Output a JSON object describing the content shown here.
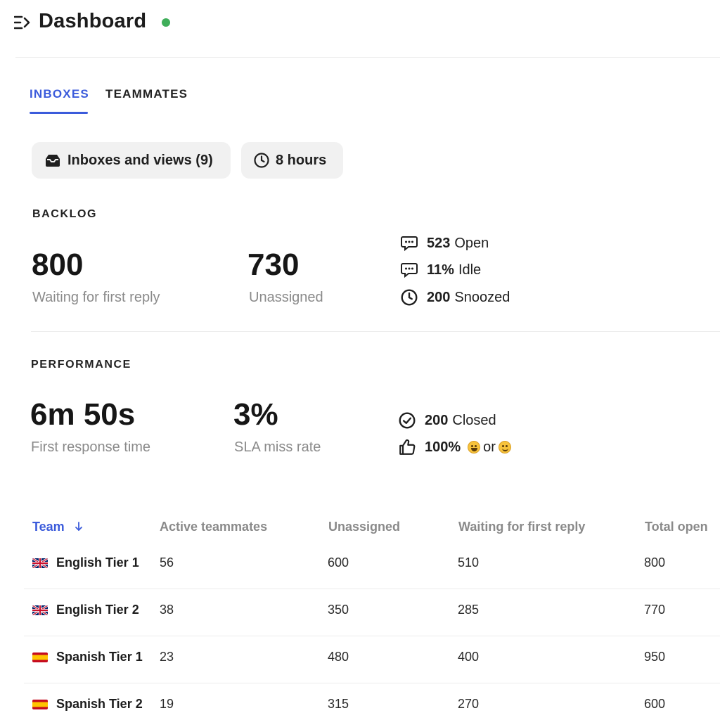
{
  "header": {
    "title": "Dashboard",
    "status_color": "#3fae5a"
  },
  "tabs": [
    {
      "label": "INBOXES",
      "active": true
    },
    {
      "label": "TEAMMATES",
      "active": false
    }
  ],
  "filters": {
    "inboxes_label": "Inboxes and views (9)",
    "hours_label": "8 hours"
  },
  "backlog": {
    "label": "BACKLOG",
    "waiting": {
      "value": "800",
      "caption": "Waiting for first reply"
    },
    "unassigned": {
      "value": "730",
      "caption": "Unassigned"
    },
    "stats": [
      {
        "icon": "chat-icon",
        "value": "523",
        "label": "Open"
      },
      {
        "icon": "chat-icon",
        "value": "11%",
        "label": "Idle"
      },
      {
        "icon": "clock-icon",
        "value": "200",
        "label": "Snoozed"
      }
    ]
  },
  "performance": {
    "label": "PERFORMANCE",
    "first_response": {
      "value": "6m 50s",
      "caption": "First response time"
    },
    "sla": {
      "value": "3%",
      "caption": "SLA miss rate"
    },
    "closed": {
      "value": "200",
      "label": "Closed"
    },
    "satisfaction": {
      "value": "100%",
      "connector": "or"
    }
  },
  "table": {
    "headers": {
      "team": "Team",
      "active": "Active teammates",
      "unassigned": "Unassigned",
      "waiting": "Waiting for first reply",
      "total": "Total open"
    },
    "sort_icon": "arrow-down-icon",
    "rows": [
      {
        "flag": "uk",
        "team": "English Tier 1",
        "active": "56",
        "unassigned": "600",
        "waiting": "510",
        "total": "800"
      },
      {
        "flag": "uk",
        "team": "English Tier 2",
        "active": "38",
        "unassigned": "350",
        "waiting": "285",
        "total": "770"
      },
      {
        "flag": "es",
        "team": "Spanish Tier 1",
        "active": "23",
        "unassigned": "480",
        "waiting": "400",
        "total": "950"
      },
      {
        "flag": "es",
        "team": "Spanish Tier 2",
        "active": "19",
        "unassigned": "315",
        "waiting": "270",
        "total": "600"
      }
    ]
  },
  "colors": {
    "accent": "#3b5bdb",
    "muted": "#8a8a8a"
  }
}
